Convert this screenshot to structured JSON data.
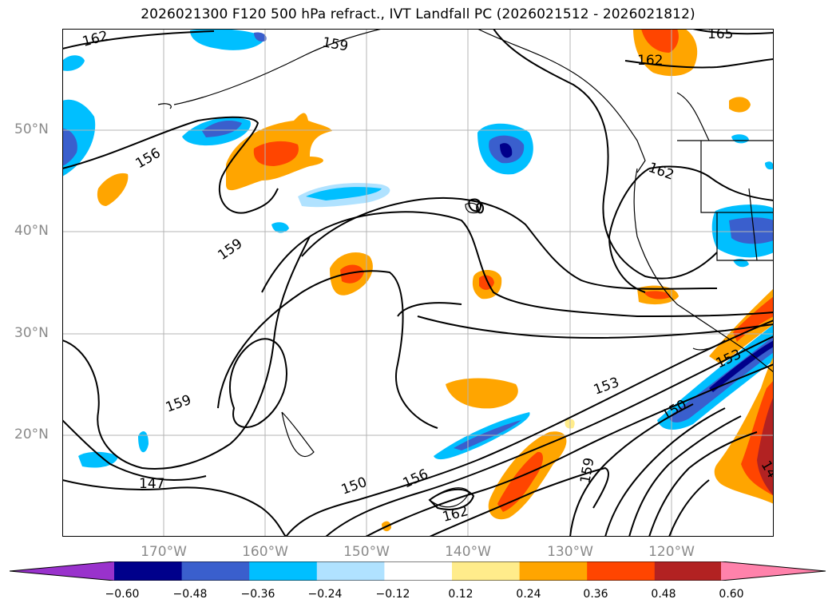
{
  "title": "2026021300 F120 500 hPa refract., IVT Landfall PC (2026021512 - 2026021812)",
  "map": {
    "projection": "lat-lon",
    "lon_range": [
      -180,
      -110
    ],
    "lat_range": [
      10,
      60
    ],
    "gridlines": true,
    "lat_labels": [
      "50°N",
      "40°N",
      "30°N",
      "20°N"
    ],
    "lon_labels": [
      "170°W",
      "160°W",
      "150°W",
      "140°W",
      "130°W",
      "120°W"
    ],
    "contour_labels": [
      "162",
      "159",
      "165",
      "162",
      "156",
      "162",
      "159",
      "159",
      "153",
      "153",
      "150",
      "147",
      "150",
      "156",
      "162",
      "159",
      "14"
    ]
  },
  "colorbar": {
    "ticks": [
      "−0.60",
      "−0.48",
      "−0.36",
      "−0.24",
      "−0.12",
      "0.12",
      "0.24",
      "0.36",
      "0.48",
      "0.60"
    ],
    "colors": [
      "#9932cc",
      "#00008b",
      "#3a5fcd",
      "#00bfff",
      "#b0e2ff",
      "#ffffff",
      "#ffec8b",
      "#ffa500",
      "#ff4500",
      "#b22222",
      "#ff82ab"
    ]
  }
}
